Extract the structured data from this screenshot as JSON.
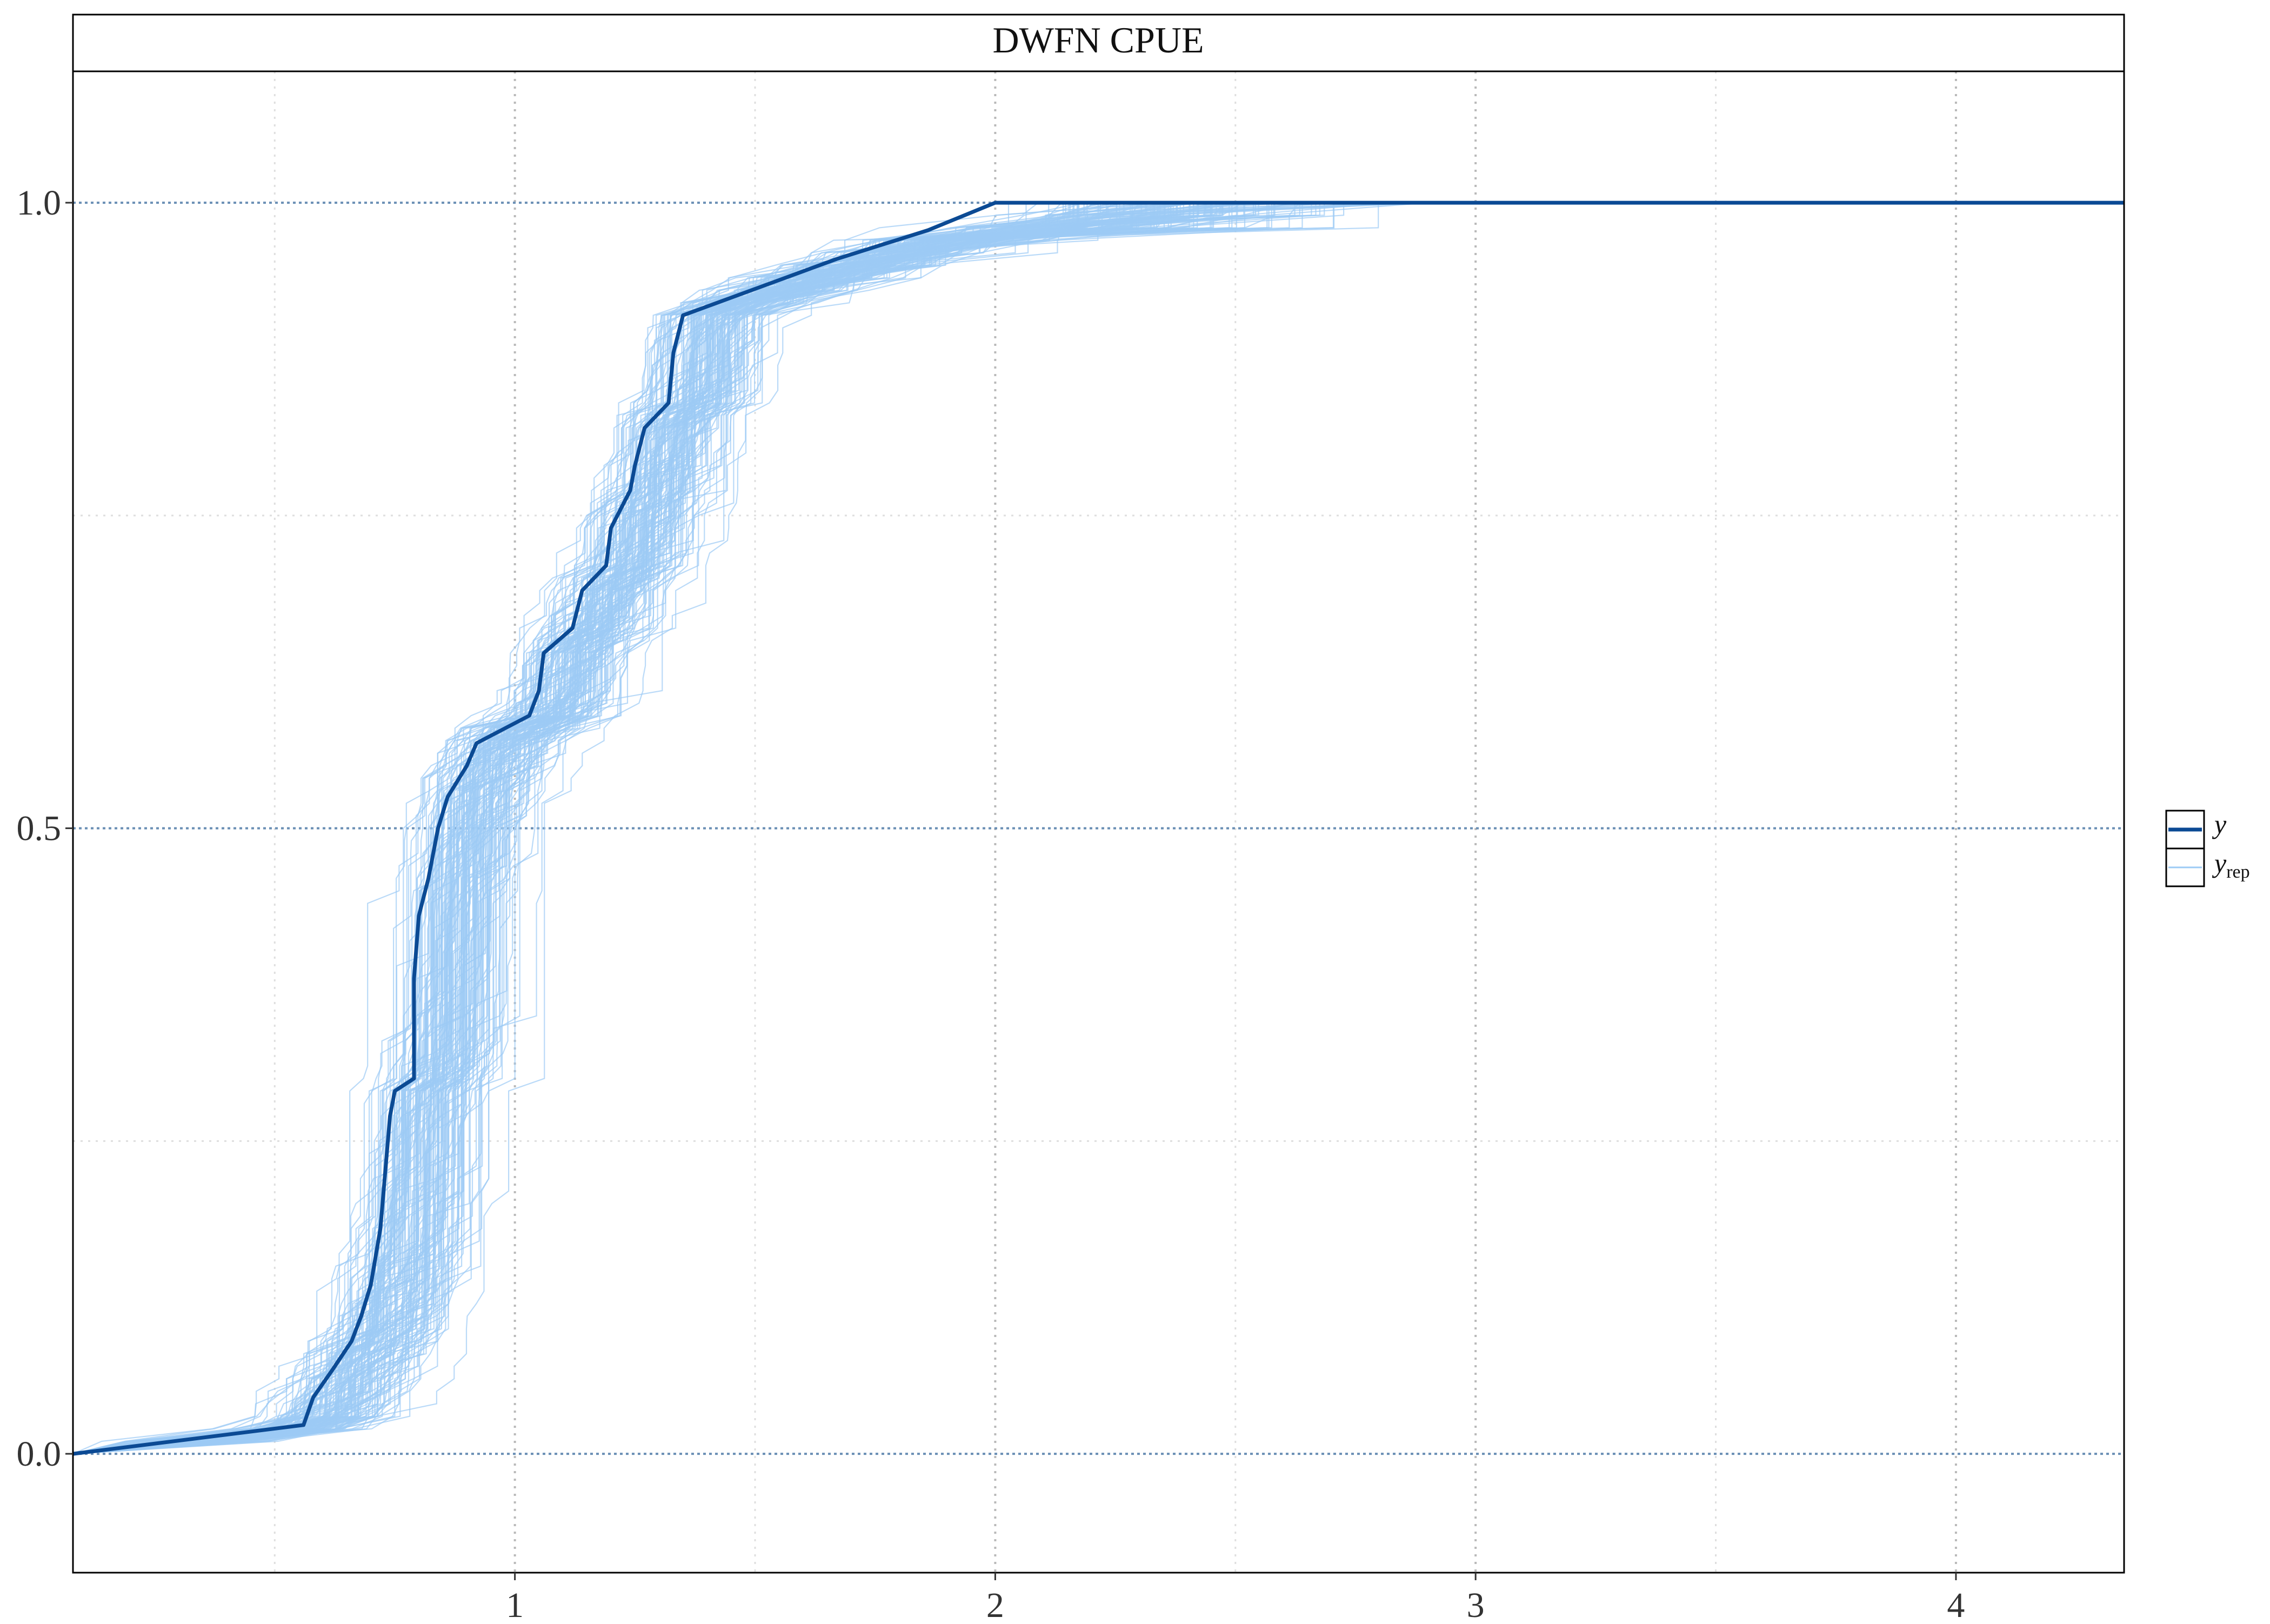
{
  "chart_data": {
    "type": "line",
    "title": "DWFN CPUE",
    "xlabel": "",
    "ylabel": "",
    "xlim": [
      0.08,
      4.35
    ],
    "ylim": [
      -0.095,
      1.105
    ],
    "x_ticks": [
      {
        "value": 1,
        "label": "1"
      },
      {
        "value": 2,
        "label": "2"
      },
      {
        "value": 3,
        "label": "3"
      },
      {
        "value": 4,
        "label": "4"
      }
    ],
    "y_ticks": [
      {
        "value": 0.0,
        "label": "0.0"
      },
      {
        "value": 0.5,
        "label": "0.5"
      },
      {
        "value": 1.0,
        "label": "1.0"
      }
    ],
    "grid": true,
    "legend": {
      "placement": "right",
      "entries": [
        {
          "name": "y",
          "subscript": ""
        },
        {
          "name": "y",
          "subscript": "rep"
        }
      ]
    },
    "colors": {
      "y": "#0b4a94",
      "yrep": "#9ccbf5",
      "grid": "#c6c6c6",
      "hline": "#6a8fb5"
    },
    "reference_lines_y": [
      0.0,
      0.5,
      1.0
    ],
    "series": [
      {
        "name": "y",
        "x": [
          0.08,
          0.56,
          0.58,
          0.62,
          0.66,
          0.68,
          0.7,
          0.72,
          0.73,
          0.74,
          0.75,
          0.79,
          0.79,
          0.8,
          0.82,
          0.83,
          0.84,
          0.86,
          0.9,
          0.92,
          1.03,
          1.05,
          1.06,
          1.12,
          1.14,
          1.19,
          1.2,
          1.24,
          1.25,
          1.27,
          1.32,
          1.33,
          1.35,
          1.67,
          1.86,
          2.0,
          4.35
        ],
        "y": [
          0.0,
          0.023,
          0.045,
          0.067,
          0.09,
          0.11,
          0.135,
          0.18,
          0.225,
          0.27,
          0.29,
          0.3,
          0.38,
          0.43,
          0.46,
          0.48,
          0.5,
          0.525,
          0.55,
          0.568,
          0.59,
          0.61,
          0.64,
          0.66,
          0.69,
          0.71,
          0.74,
          0.77,
          0.79,
          0.82,
          0.84,
          0.88,
          0.91,
          0.955,
          0.978,
          1.0,
          1.0
        ]
      }
    ],
    "replicates": {
      "name": "y_rep",
      "count": 150,
      "note": "posterior predictive ECDF draws centred around y"
    }
  }
}
